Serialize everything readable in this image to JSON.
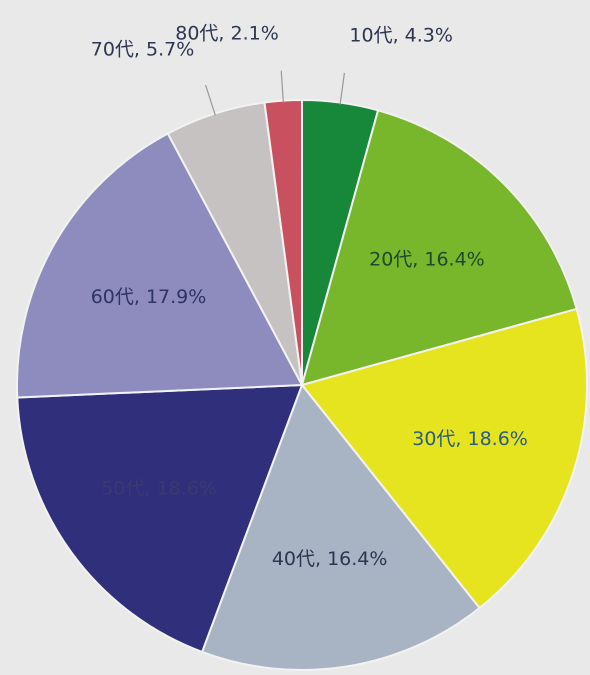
{
  "chart_data": {
    "type": "pie",
    "labels": [
      "10代, 4.3%",
      "20代, 16.4%",
      "30代, 18.6%",
      "40代, 16.4%",
      "50代, 18.6%",
      "60代, 17.9%",
      "70代, 5.7%",
      "80代, 2.1%"
    ],
    "values": [
      4.3,
      16.4,
      18.6,
      16.4,
      18.6,
      17.9,
      5.7,
      2.1
    ],
    "colors": [
      "#17873a",
      "#78b62c",
      "#e6e41e",
      "#a8b3c3",
      "#2f2f7c",
      "#8e8bbf",
      "#c6c2c2",
      "#c9505e"
    ]
  }
}
